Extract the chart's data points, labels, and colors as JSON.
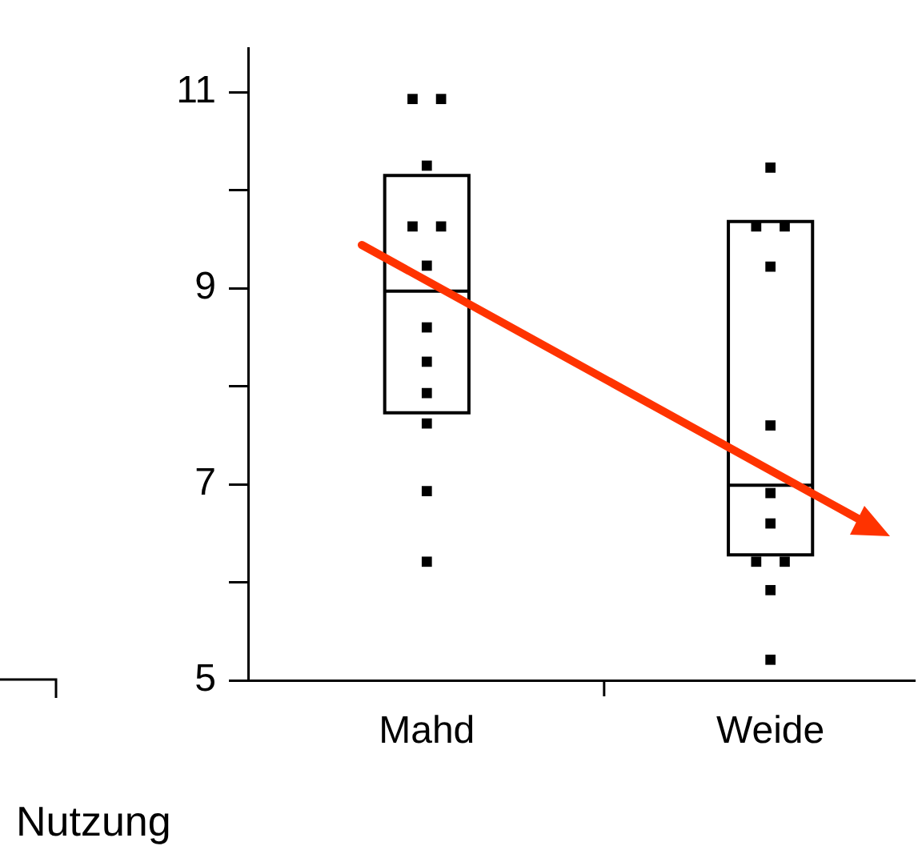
{
  "chart_data": {
    "type": "box",
    "xlabel": "Nutzung",
    "categories": [
      "Mahd",
      "Weide"
    ],
    "boxes": [
      {
        "low": 7.73,
        "q1": 7.73,
        "median": 8.97,
        "q3": 10.15,
        "high": 10.15
      },
      {
        "low": 6.28,
        "q1": 6.28,
        "median": 6.99,
        "q3": 9.68,
        "high": 9.68
      }
    ],
    "series": [
      {
        "type": "scatter",
        "color": "#000000",
        "marker": "square",
        "x": [
          "Mahd",
          "Mahd",
          "Mahd",
          "Mahd",
          "Mahd",
          "Mahd",
          "Mahd",
          "Mahd",
          "Mahd",
          "Mahd",
          "Mahd",
          "Mahd",
          "Weide",
          "Weide",
          "Weide",
          "Weide",
          "Weide",
          "Weide",
          "Weide",
          "Weide",
          "Weide",
          "Weide",
          "Weide"
        ],
        "values": [
          10.93,
          10.93,
          10.25,
          9.63,
          9.63,
          9.23,
          8.6,
          8.25,
          7.93,
          7.62,
          6.93,
          6.21,
          10.23,
          9.63,
          9.63,
          9.22,
          7.6,
          6.91,
          6.6,
          6.21,
          6.21,
          5.92,
          5.21
        ]
      }
    ],
    "ylim": [
      5,
      11.45
    ],
    "yticks": [
      5,
      {
        "value": 6,
        "label": null
      },
      7,
      {
        "value": 8,
        "label": null
      },
      9,
      {
        "value": 10,
        "label": null
      },
      11
    ],
    "grid": false,
    "legend": false
  }
}
